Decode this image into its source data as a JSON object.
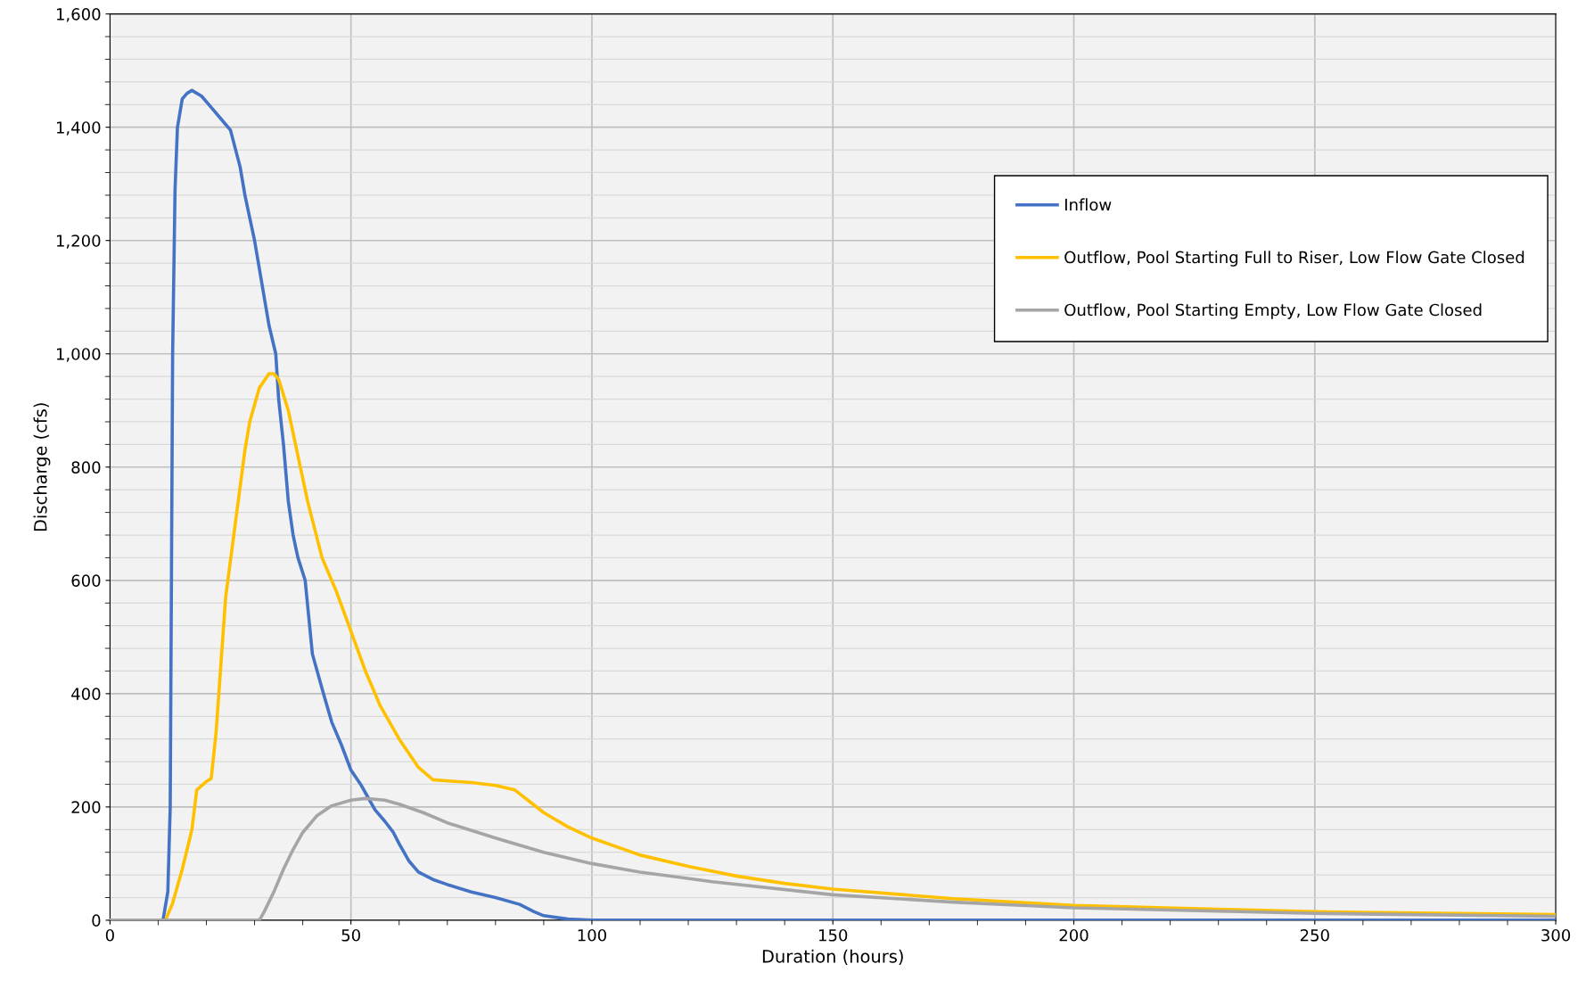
{
  "chart_data": {
    "type": "line",
    "xlabel": "Duration (hours)",
    "ylabel": "Discharge (cfs)",
    "xlim": [
      0,
      300
    ],
    "xticks": [
      0,
      50,
      100,
      150,
      200,
      250,
      300
    ],
    "ylim": [
      0,
      1600
    ],
    "yticks": [
      0,
      200,
      400,
      600,
      800,
      {
        "value": 1000,
        "label": "1,000"
      },
      {
        "value": 1200,
        "label": "1,200"
      },
      {
        "value": 1400,
        "label": "1,400"
      },
      {
        "value": 1600,
        "label": "1,600"
      }
    ],
    "grid": true,
    "legend": "right",
    "marker": "none",
    "line_style": "solid",
    "series": [
      {
        "name": "Inflow",
        "color": "#4472c4",
        "x": [
          0,
          11,
          12,
          12.5,
          13,
          13.5,
          14,
          15,
          16,
          17,
          19,
          21,
          24,
          25,
          27,
          28,
          29,
          30,
          32,
          33,
          34.4,
          35,
          36,
          37,
          38,
          39,
          40.5,
          42,
          44.3,
          46,
          48,
          50,
          52,
          53,
          55,
          57,
          58.8,
          60,
          62,
          64,
          67,
          70,
          75,
          80,
          85,
          88,
          90,
          95,
          100,
          300
        ],
        "values": [
          0,
          0,
          50,
          200,
          1000,
          1290,
          1400,
          1450,
          1460,
          1465,
          1455,
          1435,
          1405,
          1395,
          1330,
          1280,
          1240,
          1200,
          1100,
          1050,
          1000,
          920,
          840,
          740,
          680,
          640,
          600,
          470,
          400,
          350,
          310,
          265,
          240,
          225,
          195,
          175,
          155,
          135,
          105,
          85,
          72,
          63,
          50,
          40,
          28,
          15,
          8,
          2,
          0,
          0
        ]
      },
      {
        "name": "Outflow, Pool Starting Full to Riser, Low Flow Gate Closed",
        "color": "#ffc000",
        "x": [
          0,
          11.5,
          13,
          15,
          17,
          18,
          20,
          21,
          22,
          23,
          24,
          26,
          28,
          29,
          31,
          33,
          34,
          35,
          37,
          39,
          41,
          44,
          47,
          50,
          53,
          56,
          60,
          64,
          67,
          75,
          80,
          84,
          87,
          90,
          95,
          100,
          110,
          120,
          130,
          140,
          150,
          175,
          200,
          250,
          300
        ],
        "values": [
          0,
          0,
          30,
          90,
          160,
          230,
          245,
          250,
          330,
          450,
          570,
          700,
          830,
          880,
          940,
          965,
          965,
          955,
          900,
          820,
          740,
          640,
          580,
          510,
          440,
          380,
          320,
          270,
          248,
          243,
          238,
          230,
          210,
          190,
          165,
          145,
          115,
          95,
          78,
          65,
          55,
          38,
          26,
          15,
          10
        ]
      },
      {
        "name": "Outflow, Pool Starting Empty, Low Flow Gate Closed",
        "color": "#a5a5a5",
        "x": [
          0,
          31,
          32,
          34,
          36,
          38,
          40,
          43,
          46,
          50,
          53,
          57,
          60,
          65,
          70,
          80,
          90,
          100,
          110,
          125,
          150,
          175,
          200,
          250,
          300
        ],
        "values": [
          0,
          0,
          15,
          50,
          90,
          125,
          155,
          185,
          202,
          212,
          215,
          212,
          205,
          190,
          172,
          145,
          120,
          100,
          85,
          68,
          45,
          32,
          22,
          12,
          7
        ]
      }
    ]
  }
}
